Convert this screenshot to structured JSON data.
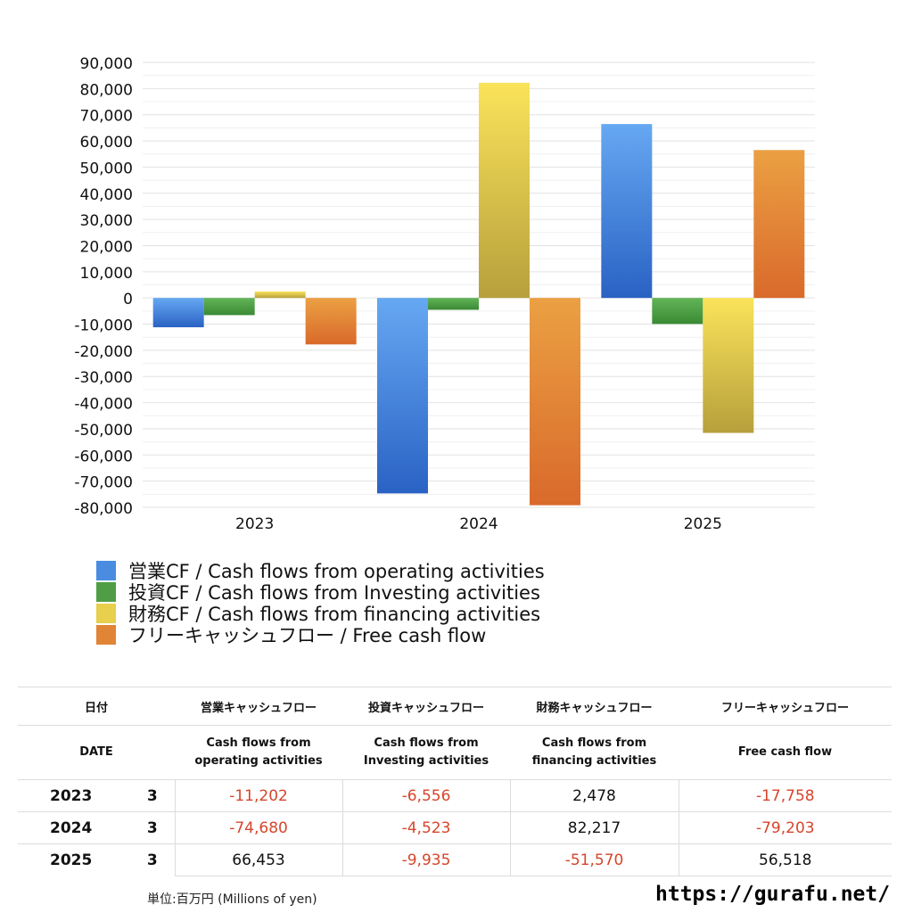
{
  "chart_data": {
    "type": "bar",
    "categories": [
      "2023",
      "2024",
      "2025"
    ],
    "series": [
      {
        "name": "営業CF / Cash flows from operating activities",
        "values": [
          -11202,
          -74680,
          66453
        ]
      },
      {
        "name": "投資CF / Cash flows from Investing activities",
        "values": [
          -6556,
          -4523,
          -9935
        ]
      },
      {
        "name": "財務CF / Cash flows from financing activities",
        "values": [
          2478,
          82217,
          -51570
        ]
      },
      {
        "name": "フリーキャッシュフロー / Free cash flow",
        "values": [
          -17758,
          -79203,
          56518
        ]
      }
    ],
    "ylim": [
      -80000,
      90000
    ],
    "yticks": [
      90000,
      80000,
      70000,
      60000,
      50000,
      40000,
      30000,
      20000,
      10000,
      0,
      -10000,
      -20000,
      -30000,
      -40000,
      -50000,
      -60000,
      -70000,
      -80000
    ],
    "ytick_labels": [
      "90,000",
      "80,000",
      "70,000",
      "60,000",
      "50,000",
      "40,000",
      "30,000",
      "20,000",
      "10,000",
      "0",
      "-10,000",
      "-20,000",
      "-30,000",
      "-40,000",
      "-50,000",
      "-60,000",
      "-70,000",
      "-80,000"
    ],
    "grid": true,
    "legend_position": "bottom-left",
    "colors": {
      "operating": [
        "#66a8f2",
        "#2a62c4"
      ],
      "investing": [
        "#63b458",
        "#3a8a34"
      ],
      "financing": [
        "#fae35a",
        "#b7a03c"
      ],
      "free": [
        "#eba043",
        "#d96a2b"
      ]
    }
  },
  "legend": [
    {
      "label": "営業CF / Cash flows from operating activities",
      "color": "#4a8ce0"
    },
    {
      "label": "投資CF / Cash flows from Investing activities",
      "color": "#4f9e45"
    },
    {
      "label": "財務CF / Cash flows from financing activities",
      "color": "#e8cf4c"
    },
    {
      "label": "フリーキャッシュフロー / Free cash flow",
      "color": "#e08436"
    }
  ],
  "table": {
    "header_ja": [
      "日付",
      "営業キャッシュフロー",
      "投資キャッシュフロー",
      "財務キャッシュフロー",
      "フリーキャッシュフロー"
    ],
    "header_en": [
      "DATE",
      "Cash flows from operating activities",
      "Cash flows from Investing activities",
      "Cash flows from financing activities",
      "Free cash flow"
    ],
    "rows": [
      {
        "year": "2023",
        "month": "3",
        "values": [
          "-11,202",
          "-6,556",
          "2,478",
          "-17,758"
        ]
      },
      {
        "year": "2024",
        "month": "3",
        "values": [
          "-74,680",
          "-4,523",
          "82,217",
          "-79,203"
        ]
      },
      {
        "year": "2025",
        "month": "3",
        "values": [
          "66,453",
          "-9,935",
          "-51,570",
          "56,518"
        ]
      }
    ]
  },
  "footer": {
    "unit": "単位:百万円 (Millions of yen)",
    "url": "https://gurafu.net/"
  }
}
